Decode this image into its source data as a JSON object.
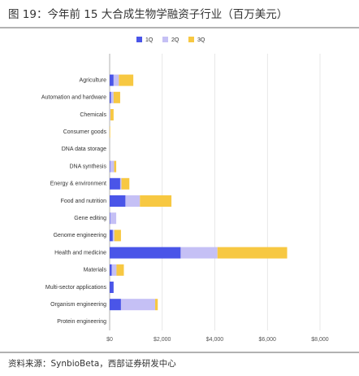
{
  "chart_data": {
    "type": "stacked-barh",
    "title": "图 19：今年前 15 大合成生物学融资子行业（百万美元）",
    "source": "资料来源：SynbioBeta，西部证券研发中心",
    "categories": [
      "Agriculture",
      "Automation and hardware",
      "Chemicals",
      "Consumer goods",
      "DNA data storage",
      "DNA synthesis",
      "Energy & environment",
      "Food and nutrition",
      "Gene editing",
      "Genome engineering",
      "Health and medicine",
      "Materials",
      "Multi-sector applications",
      "Organism engineering",
      "Protein engineering"
    ],
    "series": [
      {
        "name": "1Q",
        "color": "#4a55e8",
        "values": [
          150,
          50,
          0,
          0,
          0,
          20,
          400,
          600,
          20,
          120,
          2700,
          80,
          150,
          430,
          0
        ]
      },
      {
        "name": "2Q",
        "color": "#c5c0f5",
        "values": [
          200,
          100,
          30,
          0,
          0,
          150,
          50,
          550,
          230,
          60,
          1400,
          180,
          0,
          1300,
          0
        ]
      },
      {
        "name": "3Q",
        "color": "#f7c842",
        "values": [
          550,
          250,
          120,
          20,
          0,
          80,
          300,
          1200,
          0,
          250,
          2650,
          280,
          0,
          100,
          0
        ]
      }
    ],
    "xlim": [
      0,
      8000
    ],
    "xticks": [
      {
        "value": 0,
        "label": "$0"
      },
      {
        "value": 2000,
        "label": "$2,000"
      },
      {
        "value": 4000,
        "label": "$4,000"
      },
      {
        "value": 6000,
        "label": "$6,000"
      },
      {
        "value": 8000,
        "label": "$8,000"
      }
    ],
    "grid": true,
    "legend": "top"
  }
}
